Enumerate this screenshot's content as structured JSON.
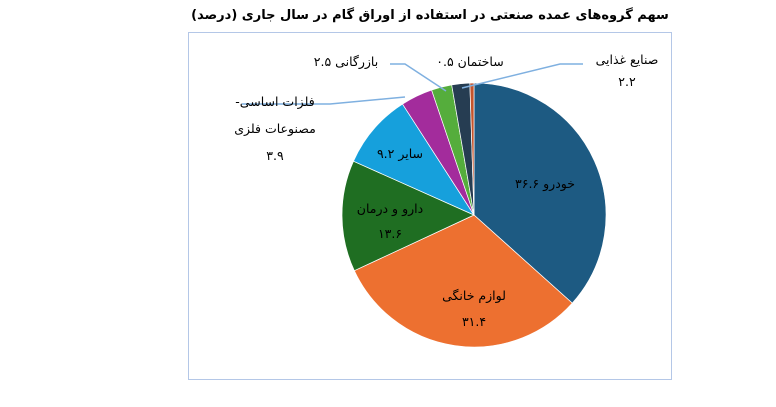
{
  "chart_data": {
    "type": "pie",
    "title": "سهم گروه‌های عمده صنعتی در استفاده از اوراق گام در سال جاری (درصد)",
    "categories": [
      "خودرو",
      "لوازم خانگی",
      "دارو و درمان",
      "سایر",
      "فلزات اساسی-مصنوعات فلزی",
      "بازرگانی",
      "صنایع غذایی",
      "ساختمان"
    ],
    "values": [
      36.6,
      31.4,
      13.6,
      9.2,
      3.9,
      2.5,
      2.2,
      0.5
    ],
    "value_labels": [
      "۳۶.۶",
      "۳۱.۴",
      "۱۳.۶",
      "۹.۲",
      "۳.۹",
      "۲.۵",
      "۲.۲",
      "۰.۵"
    ],
    "colors": [
      "#1d5a82",
      "#ed7030",
      "#1f6e22",
      "#16a0dc",
      "#a32c9c",
      "#55ad3c",
      "#263d52",
      "#c4542c"
    ],
    "legend": "none"
  }
}
